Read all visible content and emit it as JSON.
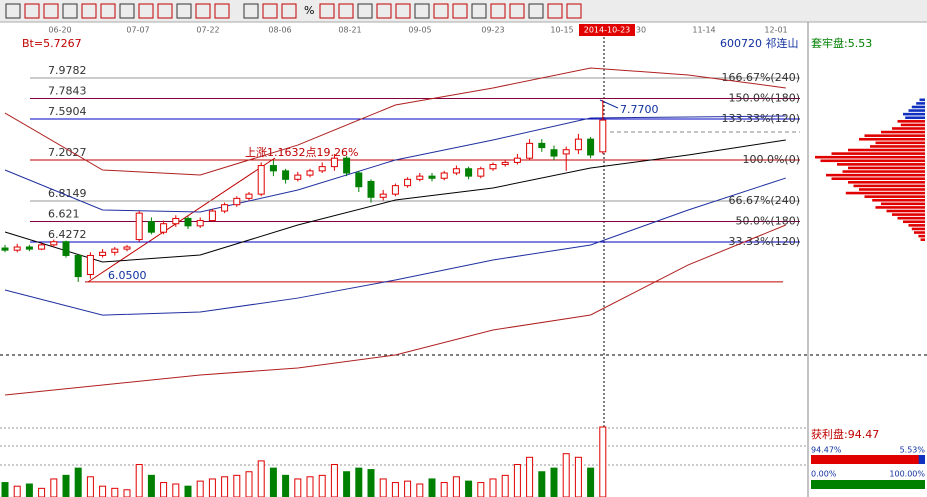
{
  "header": {
    "bt": "Bt=5.7267",
    "stock": "600720 祁连山",
    "trapped": "套牢盘:5.53",
    "percent_icon": "%"
  },
  "dates": [
    "06-20",
    "07-07",
    "07-22",
    "08-06",
    "08-21",
    "09-05",
    "09-23",
    "10-15",
    "2014-10-23",
    "30",
    "11-14",
    "12-01"
  ],
  "levels": [
    {
      "price": 7.9782,
      "label": "166.67%(240)",
      "color": "#9a9a9a"
    },
    {
      "price": 7.7843,
      "label": "150.0%(180)",
      "color": "#800040"
    },
    {
      "price": 7.5904,
      "label": "133.33%(120)",
      "color": "#0000c0"
    },
    {
      "price": 7.2027,
      "label": "100.0%(0)",
      "color": "#c00000"
    },
    {
      "price": 6.8149,
      "label": "66.67%(240)",
      "color": "#9a9a9a"
    },
    {
      "price": 6.621,
      "label": "50.0%(180)",
      "color": "#800040"
    },
    {
      "price": 6.4272,
      "label": "33.33%(120)",
      "color": "#0000c0"
    }
  ],
  "annotations": {
    "high": 7.77,
    "high_label": "7.7700",
    "low": 6.05,
    "low_label": "6.0500",
    "rise": "上涨1.1632点19.26%"
  },
  "candles": [
    [
      6.37,
      6.35,
      6.4,
      6.33
    ],
    [
      6.35,
      6.38,
      6.41,
      6.33
    ],
    [
      6.38,
      6.36,
      6.4,
      6.34
    ],
    [
      6.36,
      6.4,
      6.42,
      6.35
    ],
    [
      6.4,
      6.43,
      6.45,
      6.38
    ],
    [
      6.43,
      6.3,
      6.44,
      6.28
    ],
    [
      6.3,
      6.1,
      6.31,
      6.05
    ],
    [
      6.12,
      6.3,
      6.33,
      6.08
    ],
    [
      6.3,
      6.33,
      6.36,
      6.28
    ],
    [
      6.33,
      6.36,
      6.38,
      6.3
    ],
    [
      6.36,
      6.38,
      6.4,
      6.34
    ],
    [
      6.45,
      6.7,
      6.72,
      6.43
    ],
    [
      6.62,
      6.52,
      6.66,
      6.5
    ],
    [
      6.52,
      6.6,
      6.63,
      6.5
    ],
    [
      6.6,
      6.65,
      6.68,
      6.57
    ],
    [
      6.65,
      6.58,
      6.67,
      6.55
    ],
    [
      6.58,
      6.63,
      6.66,
      6.56
    ],
    [
      6.63,
      6.72,
      6.74,
      6.62
    ],
    [
      6.72,
      6.78,
      6.8,
      6.7
    ],
    [
      6.78,
      6.84,
      6.86,
      6.76
    ],
    [
      6.84,
      6.88,
      6.9,
      6.82
    ],
    [
      6.88,
      7.15,
      7.18,
      6.86
    ],
    [
      7.15,
      7.1,
      7.2,
      7.05
    ],
    [
      7.1,
      7.02,
      7.12,
      6.98
    ],
    [
      7.02,
      7.06,
      7.09,
      7.0
    ],
    [
      7.06,
      7.1,
      7.12,
      7.04
    ],
    [
      7.1,
      7.14,
      7.18,
      7.08
    ],
    [
      7.14,
      7.22,
      7.26,
      7.1
    ],
    [
      7.22,
      7.08,
      7.24,
      7.05
    ],
    [
      7.08,
      6.95,
      7.1,
      6.9
    ],
    [
      7.0,
      6.85,
      7.02,
      6.8
    ],
    [
      6.85,
      6.88,
      6.92,
      6.82
    ],
    [
      6.88,
      6.96,
      6.98,
      6.86
    ],
    [
      6.96,
      7.02,
      7.04,
      6.94
    ],
    [
      7.02,
      7.05,
      7.08,
      7.0
    ],
    [
      7.05,
      7.03,
      7.08,
      7.0
    ],
    [
      7.03,
      7.08,
      7.1,
      7.01
    ],
    [
      7.08,
      7.12,
      7.15,
      7.06
    ],
    [
      7.12,
      7.05,
      7.14,
      7.02
    ],
    [
      7.05,
      7.12,
      7.14,
      7.03
    ],
    [
      7.12,
      7.16,
      7.18,
      7.1
    ],
    [
      7.16,
      7.18,
      7.2,
      7.14
    ],
    [
      7.18,
      7.22,
      7.26,
      7.16
    ],
    [
      7.22,
      7.36,
      7.4,
      7.2
    ],
    [
      7.36,
      7.32,
      7.4,
      7.28
    ],
    [
      7.3,
      7.24,
      7.34,
      7.2
    ],
    [
      7.26,
      7.3,
      7.33,
      7.1
    ],
    [
      7.3,
      7.4,
      7.45,
      7.26
    ],
    [
      7.4,
      7.25,
      7.42,
      7.22
    ],
    [
      7.28,
      7.58,
      7.77,
      7.26
    ]
  ],
  "volumes": [
    20,
    15,
    18,
    12,
    25,
    30,
    40,
    28,
    15,
    12,
    10,
    45,
    30,
    20,
    18,
    15,
    22,
    25,
    28,
    30,
    35,
    50,
    40,
    30,
    25,
    28,
    30,
    45,
    35,
    40,
    38,
    25,
    20,
    22,
    18,
    25,
    20,
    28,
    22,
    20,
    25,
    30,
    45,
    55,
    35,
    40,
    60,
    55,
    40,
    97
  ],
  "indicators": {
    "x": [
      0,
      8,
      16,
      24,
      32,
      40,
      48,
      56,
      64
    ],
    "series": [
      {
        "color": "#b02020",
        "values": [
          7.647,
          7.108,
          7.061,
          7.344,
          7.723,
          7.884,
          8.073,
          8.007,
          7.884
        ]
      },
      {
        "color": "#2030a0",
        "values": [
          7.108,
          6.73,
          6.711,
          6.919,
          7.203,
          7.392,
          7.6,
          7.609,
          7.619
        ]
      },
      {
        "color": "#000000",
        "values": [
          6.522,
          6.238,
          6.304,
          6.588,
          6.824,
          6.938,
          7.127,
          7.25,
          7.392
        ]
      },
      {
        "color": "#2030a0",
        "values": [
          5.973,
          5.736,
          5.765,
          5.897,
          6.068,
          6.257,
          6.399,
          6.73,
          7.032
        ]
      },
      {
        "color": "#b02020",
        "values": [
          4.98,
          5.075,
          5.169,
          5.236,
          5.359,
          5.595,
          5.737,
          6.21,
          6.588
        ]
      }
    ]
  },
  "distribution": [
    5,
    8,
    12,
    15,
    20,
    18,
    25,
    22,
    30,
    40,
    55,
    60,
    45,
    50,
    70,
    85,
    100,
    95,
    80,
    70,
    75,
    90,
    85,
    70,
    65,
    60,
    72,
    55,
    48,
    40,
    45,
    35,
    30,
    25,
    20,
    15,
    12,
    10,
    6,
    4
  ],
  "profit": {
    "label": "获利盘:94.47",
    "value": 94.47,
    "profit_pct": "94.47%",
    "trapped_pct": "5.53%",
    "zero_pct": "0.00%",
    "full_pct": "100.00%"
  }
}
